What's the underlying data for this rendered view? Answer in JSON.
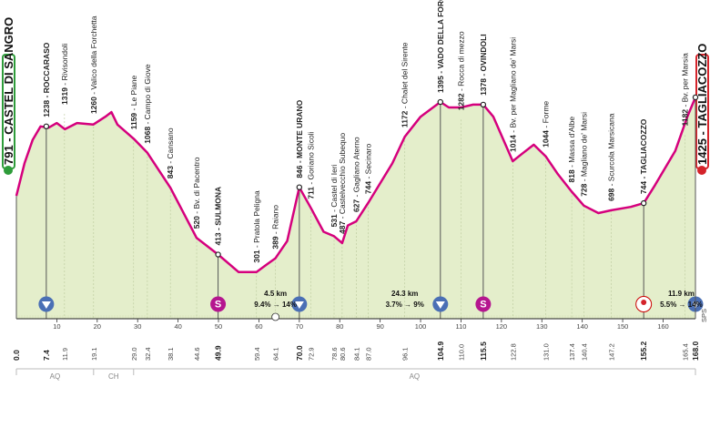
{
  "start": {
    "km": "0.0",
    "alt": "791",
    "name": "CASTEL DI SANGRO",
    "color": "#2e9c3a"
  },
  "finish": {
    "km": "168.0",
    "alt": "1425",
    "name": "TAGLIACOZZO",
    "color": "#d4232a"
  },
  "profile_points": [
    [
      0,
      791
    ],
    [
      2,
      1000
    ],
    [
      4,
      1150
    ],
    [
      6,
      1238
    ],
    [
      8,
      1230
    ],
    [
      10,
      1260
    ],
    [
      12,
      1220
    ],
    [
      15,
      1260
    ],
    [
      19,
      1250
    ],
    [
      22,
      1300
    ],
    [
      23.5,
      1330
    ],
    [
      25,
      1250
    ],
    [
      29,
      1159
    ],
    [
      32.4,
      1068
    ],
    [
      38.1,
      843
    ],
    [
      44.6,
      520
    ],
    [
      49.9,
      413
    ],
    [
      55,
      300
    ],
    [
      59.4,
      301
    ],
    [
      62,
      350
    ],
    [
      64.1,
      389
    ],
    [
      67,
      500
    ],
    [
      70,
      846
    ],
    [
      72.9,
      711
    ],
    [
      76,
      560
    ],
    [
      78.6,
      531
    ],
    [
      80.6,
      487
    ],
    [
      82,
      600
    ],
    [
      84.1,
      627
    ],
    [
      87,
      744
    ],
    [
      93,
      1000
    ],
    [
      96.1,
      1172
    ],
    [
      100,
      1300
    ],
    [
      104.9,
      1395
    ],
    [
      107,
      1360
    ],
    [
      110,
      1360
    ],
    [
      113,
      1378
    ],
    [
      115.5,
      1378
    ],
    [
      118,
      1300
    ],
    [
      122.8,
      1014
    ],
    [
      125,
      1060
    ],
    [
      128,
      1120
    ],
    [
      131,
      1044
    ],
    [
      134,
      930
    ],
    [
      137.4,
      818
    ],
    [
      140.4,
      728
    ],
    [
      144,
      680
    ],
    [
      147.2,
      698
    ],
    [
      152,
      720
    ],
    [
      155.2,
      744
    ],
    [
      158,
      860
    ],
    [
      163,
      1080
    ],
    [
      166,
      1300
    ],
    [
      168,
      1425
    ]
  ],
  "ylim": [
    0,
    1700
  ],
  "xlim": [
    0,
    168
  ],
  "peaks": [
    {
      "km": 7.4,
      "alt": 1238,
      "alt_label": "1238",
      "name": "ROCCARASO",
      "bold": true,
      "marker": "climb",
      "drop": true
    },
    {
      "km": 11.9,
      "alt": 1319,
      "alt_label": "1319",
      "name": "Rivisondoli",
      "bold": false
    },
    {
      "km": 19.1,
      "alt": 1260,
      "alt_label": "1260",
      "name": "Valico della Forchetta",
      "bold": false
    },
    {
      "km": 29.0,
      "alt": 1159,
      "alt_label": "1159",
      "name": "Le Piane",
      "bold": false
    },
    {
      "km": 32.4,
      "alt": 1068,
      "alt_label": "1068",
      "name": "Campo di Giove",
      "bold": false
    },
    {
      "km": 38.1,
      "alt": 843,
      "alt_label": "843",
      "name": "Cansano",
      "bold": false
    },
    {
      "km": 44.6,
      "alt": 520,
      "alt_label": "520",
      "name": "Bv. di Pacentro",
      "bold": false
    },
    {
      "km": 49.9,
      "alt": 413,
      "alt_label": "413",
      "name": "SULMONA",
      "bold": true,
      "marker": "sprint",
      "drop": true
    },
    {
      "km": 59.4,
      "alt": 301,
      "alt_label": "301",
      "name": "Pratola Peligna",
      "bold": false
    },
    {
      "km": 64.1,
      "alt": 389,
      "alt_label": "389",
      "name": "Raiano",
      "bold": false
    },
    {
      "km": 70.0,
      "alt": 846,
      "alt_label": "846",
      "name": "MONTE URANO",
      "bold": true,
      "marker": "climb",
      "drop": true
    },
    {
      "km": 72.9,
      "alt": 711,
      "alt_label": "711",
      "name": "Goriano Sicoli",
      "bold": false
    },
    {
      "km": 78.6,
      "alt": 531,
      "alt_label": "531",
      "name": "Castel di Ieri",
      "bold": false
    },
    {
      "km": 80.6,
      "alt": 487,
      "alt_label": "487",
      "name": "Castelvecchio Subequo",
      "bold": false
    },
    {
      "km": 84.1,
      "alt": 627,
      "alt_label": "627",
      "name": "Gagliano Aterno",
      "bold": false
    },
    {
      "km": 87.0,
      "alt": 744,
      "alt_label": "744",
      "name": "Secinaro",
      "bold": false
    },
    {
      "km": 96.1,
      "alt": 1172,
      "alt_label": "1172",
      "name": "Chalet del Sirente",
      "bold": false
    },
    {
      "km": 104.9,
      "alt": 1395,
      "alt_label": "1395",
      "name": "VADO DELLA FORCELLA",
      "bold": true,
      "marker": "climb",
      "drop": true
    },
    {
      "km": 110.0,
      "alt": 1282,
      "alt_label": "1282",
      "name": "Rocca di mezzo",
      "bold": false
    },
    {
      "km": 115.5,
      "alt": 1378,
      "alt_label": "1378",
      "name": "OVINDOLI",
      "bold": true,
      "marker": "sprint",
      "drop": true
    },
    {
      "km": 122.8,
      "alt": 1014,
      "alt_label": "1014",
      "name": "Bv. per Magliano de' Marsi",
      "bold": false
    },
    {
      "km": 131.0,
      "alt": 1044,
      "alt_label": "1044",
      "name": "Forme",
      "bold": false
    },
    {
      "km": 137.4,
      "alt": 818,
      "alt_label": "818",
      "name": "Massa d'Albe",
      "bold": false
    },
    {
      "km": 140.4,
      "alt": 728,
      "alt_label": "728",
      "name": "Magliano de' Marsi",
      "bold": false
    },
    {
      "km": 147.2,
      "alt": 698,
      "alt_label": "698",
      "name": "Scurcola Marsicana",
      "bold": false
    },
    {
      "km": 155.2,
      "alt": 744,
      "alt_label": "744",
      "name": "TAGLIACOZZO",
      "bold": true,
      "marker": "redbull",
      "drop": true
    },
    {
      "km": 165.4,
      "alt": 1182,
      "alt_label": "1182",
      "name": "Bv. per Marsia",
      "bold": false
    }
  ],
  "km_marks": [
    "0.0",
    "7.4",
    "11.9",
    "19.1",
    "29.0",
    "32.4",
    "38.1",
    "44.6",
    "49.9",
    "59.4",
    "64.1",
    "70.0",
    "72.9",
    "78.6",
    "80.6",
    "84.1",
    "87.0",
    "96.1",
    "104.9",
    "110.0",
    "115.5",
    "122.8",
    "131.0",
    "137.4",
    "140.4",
    "147.2",
    "155.2",
    "165.4",
    "168.0"
  ],
  "km_bold": [
    "0.0",
    "7.4",
    "49.9",
    "70.0",
    "104.9",
    "115.5",
    "155.2",
    "168.0"
  ],
  "axis_ticks": [
    10,
    20,
    30,
    40,
    50,
    60,
    70,
    80,
    90,
    100,
    110,
    120,
    130,
    140,
    150,
    160
  ],
  "climbs": [
    {
      "km_label": "4.5 km",
      "grade_label": "9.4% → 14%",
      "at_km": 64.1
    },
    {
      "km_label": "24.3 km",
      "grade_label": "3.7% → 9%",
      "at_km": 96.1
    },
    {
      "km_label": "11.9 km",
      "grade_label": "5.5% → 14%",
      "at_km": 164.5
    }
  ],
  "regions": [
    {
      "label": "AQ",
      "from": 0,
      "to": 19.1
    },
    {
      "label": "CH",
      "from": 19.1,
      "to": 29.0
    },
    {
      "label": "AQ",
      "from": 29.0,
      "to": 168
    }
  ],
  "side_label": "SPS",
  "colors": {
    "fill": "#e4eecb",
    "stroke": "#d5007d",
    "sprint": "#b5168f",
    "climb": "#4a6fb5"
  }
}
